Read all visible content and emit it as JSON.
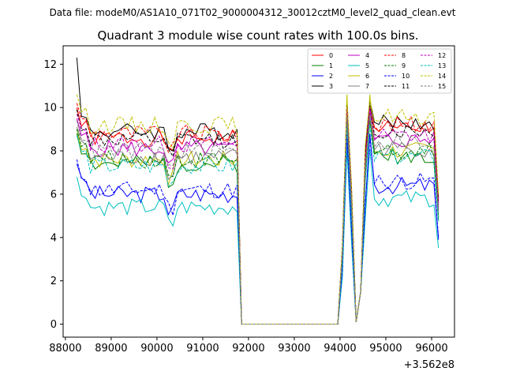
{
  "chart_data": {
    "type": "line",
    "header_text": "Data file: modeM0/AS1A10_071T02_9000004312_30012cztM0_level2_quad_clean.evt",
    "title": "Quadrant 3 module wise count rates with 100.0s bins.",
    "xlabel": "",
    "ylabel": "",
    "x_offset_text": "+3.562e8",
    "xlim": [
      87950,
      96500
    ],
    "ylim": [
      -0.6,
      12.85
    ],
    "x_ticks": [
      88000,
      89000,
      90000,
      91000,
      92000,
      93000,
      94000,
      95000,
      96000
    ],
    "y_ticks": [
      0,
      2,
      4,
      6,
      8,
      10,
      12
    ],
    "legend": {
      "placement": "top-right",
      "columns": 4
    },
    "x_start": 88250,
    "x_step": 100,
    "n_points": 80,
    "series": [
      {
        "name": "0",
        "color": "#ff0000",
        "dash": "solid",
        "base": 8.6,
        "peak": 10.0,
        "seed": 1
      },
      {
        "name": "1",
        "color": "#008000",
        "dash": "solid",
        "base": 7.4,
        "peak": 9.5,
        "seed": 2
      },
      {
        "name": "2",
        "color": "#0000ff",
        "dash": "solid",
        "base": 6.0,
        "peak": 8.8,
        "seed": 3
      },
      {
        "name": "3",
        "color": "#000000",
        "dash": "solid",
        "base": 8.9,
        "peak": 10.3,
        "seed": 4
      },
      {
        "name": "4",
        "color": "#bf00bf",
        "dash": "solid",
        "base": 8.1,
        "peak": 9.9,
        "seed": 5
      },
      {
        "name": "5",
        "color": "#00bfbf",
        "dash": "solid",
        "base": 5.4,
        "peak": 8.1,
        "seed": 6
      },
      {
        "name": "6",
        "color": "#bfbf00",
        "dash": "solid",
        "base": 7.6,
        "peak": 10.6,
        "seed": 7
      },
      {
        "name": "7",
        "color": "#808080",
        "dash": "solid",
        "base": 7.7,
        "peak": 9.7,
        "seed": 8
      },
      {
        "name": "8",
        "color": "#ff0000",
        "dash": "dashed",
        "base": 8.8,
        "peak": 10.0,
        "seed": 9
      },
      {
        "name": "9",
        "color": "#008000",
        "dash": "dashed",
        "base": 7.6,
        "peak": 9.4,
        "seed": 10
      },
      {
        "name": "10",
        "color": "#0000ff",
        "dash": "dashed",
        "base": 6.2,
        "peak": 8.6,
        "seed": 11
      },
      {
        "name": "11",
        "color": "#000000",
        "dash": "dashed",
        "base": 8.5,
        "peak": 10.1,
        "seed": 12
      },
      {
        "name": "12",
        "color": "#bf00bf",
        "dash": "dashed",
        "base": 8.3,
        "peak": 10.0,
        "seed": 13
      },
      {
        "name": "13",
        "color": "#00bfbf",
        "dash": "dashed",
        "base": 7.3,
        "peak": 9.2,
        "seed": 14
      },
      {
        "name": "14",
        "color": "#bfbf00",
        "dash": "dashed",
        "base": 9.2,
        "peak": 10.4,
        "seed": 15
      },
      {
        "name": "15",
        "color": "#808080",
        "dash": "dashed",
        "base": 8.0,
        "peak": 9.6,
        "seed": 16
      }
    ]
  }
}
